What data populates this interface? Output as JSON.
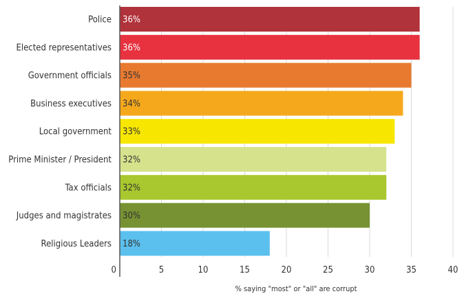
{
  "chart_data": {
    "type": "bar",
    "orientation": "horizontal",
    "title": "",
    "xlabel": "% saying \"most\" or \"all\" are corrupt",
    "ylabel": "",
    "xlim": [
      0,
      40
    ],
    "xticks": [
      0,
      5,
      10,
      15,
      20,
      25,
      30,
      35,
      40
    ],
    "grid": "vertical",
    "categories": [
      "Police",
      "Elected representatives",
      "Government officials",
      "Business executives",
      "Local government",
      "Prime Minister / President",
      "Tax officials",
      "Judges and magistrates",
      "Religious Leaders"
    ],
    "values": [
      36,
      36,
      35,
      34,
      33,
      32,
      32,
      30,
      18
    ],
    "value_labels": [
      "36%",
      "36%",
      "35%",
      "34%",
      "33%",
      "32%",
      "32%",
      "30%",
      "18%"
    ],
    "colors": [
      "#b0323a",
      "#e8323f",
      "#e87a30",
      "#f5a81c",
      "#f7e600",
      "#d6e38c",
      "#a9c72e",
      "#779233",
      "#5bc0ee"
    ],
    "value_label_colors": [
      "#ffffff",
      "#ffffff",
      "#333333",
      "#333333",
      "#333333",
      "#333333",
      "#333333",
      "#333333",
      "#333333"
    ]
  }
}
